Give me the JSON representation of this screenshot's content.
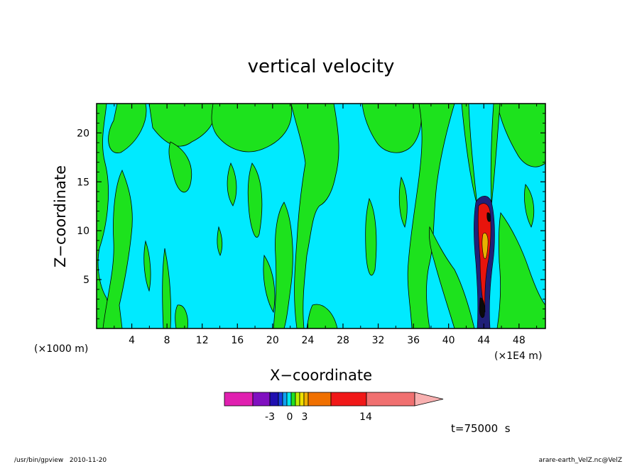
{
  "chart_data": {
    "type": "heatmap",
    "title": "vertical velocity",
    "xlabel": "X−coordinate",
    "ylabel": "Z−coordinate",
    "x_unit_left": "(×1000 m)",
    "x_unit_right": "(×1E4 m)",
    "xlim": [
      0,
      51
    ],
    "ylim": [
      0,
      23
    ],
    "x_ticks": [
      4,
      8,
      12,
      16,
      20,
      24,
      28,
      32,
      36,
      40,
      44,
      48
    ],
    "y_ticks": [
      5,
      10,
      15,
      20
    ],
    "colorbar": {
      "colors": [
        "#e020b0",
        "#8010c0",
        "#2010b0",
        "#1840e0",
        "#10a0f0",
        "#00e8f0",
        "#20e020",
        "#c0f000",
        "#f0e000",
        "#f0b000",
        "#f07000",
        "#f01818",
        "#f07070",
        "#f8b0b0"
      ],
      "labels": [
        "-3",
        "0",
        "3",
        "14"
      ],
      "extend": "max"
    },
    "regions": {
      "background_color": "#00eaff",
      "upward_color": "#1de21d",
      "core_colors": [
        "#e8140c",
        "#202078",
        "#e8b000",
        "#0a0a0a"
      ]
    },
    "time_label": "t=75000  s",
    "footer_left": "/usr/bin/gpview   2010-11-20",
    "footer_right": "arare-earth_VelZ.nc@VelZ"
  }
}
